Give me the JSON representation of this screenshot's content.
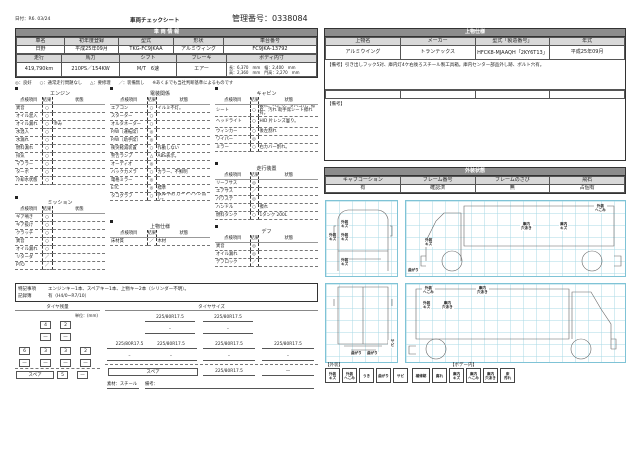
{
  "header": {
    "date": "日付：R6. 03/24",
    "title": "車両チェックシート",
    "control_no": "管理番号：0338084"
  },
  "vehicle_info": {
    "title": "車 両 情 報",
    "row1_labels": [
      "車名",
      "初年度登録",
      "型式",
      "形状",
      "車台番号"
    ],
    "row1_values": [
      "日野",
      "平成25年09月",
      "TKG-FC9JKAA",
      "アルミウィング",
      "FC9JKA-13792"
    ],
    "row2_labels": [
      "走行",
      "馬力",
      "シフト",
      "ブレーキ",
      "ボディ内寸"
    ],
    "row2_values": [
      "419,790km",
      "210PS／154KW",
      "M/T　6速",
      "エアー"
    ],
    "body_dims": [
      "長：6,370　mm　幅：2,400　mm",
      "高：2,360　mm　門高：2,270　mm"
    ]
  },
  "legend": [
    "◎：良好",
    "○：通常走行問題なし",
    "△：要修理",
    "／：装備無し",
    "※あくまでも当社判断基準によるものです"
  ],
  "check_headers": [
    "点検項目",
    "結果",
    "状態"
  ],
  "sections": {
    "engine": {
      "title": "エンジン",
      "rows": [
        [
          "異音",
          "○",
          ""
        ],
        [
          "オイル混入",
          "○",
          ""
        ],
        [
          "オイル漏れ",
          "○",
          "滲み"
        ],
        [
          "水混入",
          "○",
          ""
        ],
        [
          "水漏れ",
          "○",
          ""
        ],
        [
          "燃料漏れ",
          "○",
          ""
        ],
        [
          "排気",
          "○",
          ""
        ],
        [
          "マフラー",
          "○",
          ""
        ],
        [
          "ターボ",
          "○",
          ""
        ],
        [
          "冷却水状態",
          "○",
          ""
        ]
      ]
    },
    "mission": {
      "title": "ミッション",
      "rows": [
        [
          "ギア鳴き",
          "○",
          ""
        ],
        [
          "ギア抜け",
          "○",
          ""
        ],
        [
          "クラッチ",
          "○",
          ""
        ],
        [
          "異音",
          "○",
          ""
        ],
        [
          "オイル漏れ",
          "○",
          ""
        ],
        [
          "リターダ",
          "／",
          ""
        ],
        [
          "PTO",
          "／",
          ""
        ]
      ]
    },
    "electrical": {
      "title": "電装関係",
      "rows": [
        [
          "エアコン",
          "○",
          "イルミ不灯。"
        ],
        [
          "スターター",
          "○",
          ""
        ],
        [
          "オルタネーター",
          "○",
          ""
        ],
        [
          "P/W（運転席）",
          "◎",
          ""
        ],
        [
          "P/W（助手席）",
          "◎",
          ""
        ],
        [
          "衝突軽減装置",
          "○",
          "作動しない"
        ],
        [
          "警告ランプ",
          "△",
          "ABS表示。"
        ],
        [
          "オーディオ",
          "◎",
          ""
        ],
        [
          "バックカメラ",
          "○",
          "カラー、不鮮明"
        ],
        [
          "電格ミラー",
          "◎",
          ""
        ],
        [
          "ETC",
          "◎",
          "標準"
        ],
        [
          "タコグラフ",
          "○",
          "故障不明 カートリッジ無し。"
        ]
      ]
    },
    "upper": {
      "title": "上物仕様",
      "rows": [
        [
          "床材質",
          "／",
          "木材"
        ]
      ]
    },
    "cabin": {
      "title": "キャビン",
      "rows": [
        [
          "シート",
          "○",
          "破れ、へたり、タバコ穴、擦れ、汚れ 助手席シート擦れ有。"
        ],
        [
          "ヘッドライト",
          "○",
          "HID 片レンズ曇り。"
        ],
        [
          "ウィンカー",
          "○",
          "後左割れ"
        ],
        [
          "ワイパー",
          "◎",
          ""
        ],
        [
          "ミラー",
          "○",
          "右カバー割れ。"
        ]
      ]
    },
    "running": {
      "title": "走行装置",
      "rows": [
        [
          "リーフサス",
          "◎",
          ""
        ],
        [
          "エアサス",
          "／",
          ""
        ],
        [
          "パワステ",
          "◎",
          ""
        ],
        [
          "ハンドル",
          "○",
          "擦れ"
        ],
        [
          "燃料タンク",
          "○",
          "1タンク 200L"
        ]
      ]
    },
    "diff": {
      "title": "デフ",
      "rows": [
        [
          "異音",
          "◎",
          ""
        ],
        [
          "オイル漏れ",
          "◎",
          ""
        ],
        [
          "デフロック",
          "／",
          ""
        ]
      ]
    }
  },
  "notes": {
    "special_label": "特記事項",
    "special": "エンジンキー1本、スペアキー1本、上物キー2本（シリンダー不明）。",
    "record_label": "記録簿",
    "record": "有（H4/0~R7/10）"
  },
  "tire_remaining": {
    "title": "タイヤ残量",
    "unit": "単位：(mm)",
    "front": [
      "4",
      "2"
    ],
    "front_sub": [
      "—",
      "—"
    ],
    "rear": [
      "6",
      "3",
      "3",
      "2"
    ],
    "rear_sub": [
      "—",
      "—",
      "—",
      "—"
    ],
    "spare_label": "スペア",
    "spare": "5",
    "spare_sub": "—"
  },
  "tire_size": {
    "title": "タイヤサイズ",
    "front": [
      "225/80R17.5",
      "225/80R17.5"
    ],
    "front_sub": [
      "–",
      "–"
    ],
    "rear": [
      "225/80R17.5",
      "225/80R17.5",
      "225/80R17.5",
      "225/80R17.5"
    ],
    "rear_sub": [
      "–",
      "–",
      "–",
      "–"
    ],
    "spare_label": "スペア",
    "spare": "225/80R17.5",
    "spare_sub": "—",
    "material": "素材：スチール",
    "remarks": "備考："
  },
  "upper_spec": {
    "title": "上物仕様",
    "labels": [
      "上物名",
      "メーカー",
      "型式「製造番号」",
      "年式"
    ],
    "values": [
      "アルミウイング",
      "トランテックス",
      "HFCK8-MJAAQH「2KY6T13」",
      "平成25年09月"
    ],
    "remark1": "【備考】引き出しフック5対、庫内灯4ケ右後ろスチール製工具箱。庫内センター部品外し跡、ボルト穴有。",
    "remark2": "【備考】"
  },
  "exterior": {
    "title": "外装状態",
    "labels": [
      "キャブコーション",
      "フレーム番号",
      "フレームのさび",
      "飛石"
    ],
    "values": [
      "有",
      "確認済",
      "無",
      "占個有"
    ]
  },
  "diagram_tags": {
    "front": [
      [
        "外装",
        "キズ"
      ],
      [
        "外装",
        "キズ"
      ],
      [
        "外装",
        "キズ"
      ],
      [
        "外装",
        "キズ"
      ]
    ],
    "side1": [
      [
        "外装",
        "へこみ"
      ],
      [
        "庫内",
        "穴あき"
      ],
      [
        "庫内",
        "キズ"
      ],
      [
        "外装",
        "キズ"
      ],
      [
        "曲がり",
        ""
      ]
    ],
    "side2": [
      [
        "外装",
        "へこみ"
      ],
      [
        "庫内",
        "穴あき"
      ],
      [
        "外装",
        "キズ"
      ],
      [
        "庫内",
        "穴あき"
      ]
    ],
    "rear": [
      [
        "サビ",
        ""
      ],
      [
        "曲がり",
        ""
      ],
      [
        "曲がり",
        ""
      ]
    ]
  },
  "damage_legend": {
    "exterior_title": "【外装】",
    "body_title": "【ボデー内】",
    "items": [
      [
        "外装",
        "キズ"
      ],
      [
        "外装",
        "へこみ"
      ],
      [
        "うき",
        ""
      ],
      [
        "曲がり",
        ""
      ],
      [
        "サビ",
        ""
      ],
      [
        "補修跡",
        ""
      ],
      [
        "腐れ",
        ""
      ],
      [
        "庫内",
        "キズ"
      ],
      [
        "庫内",
        "へこみ"
      ],
      [
        "庫内",
        "穴あき"
      ],
      [
        "床",
        "汚れ"
      ]
    ]
  },
  "colors": {
    "header_bar": "#8c8c8c",
    "label_bg": "#d8d8d8",
    "grid": "#a9d9e6"
  }
}
